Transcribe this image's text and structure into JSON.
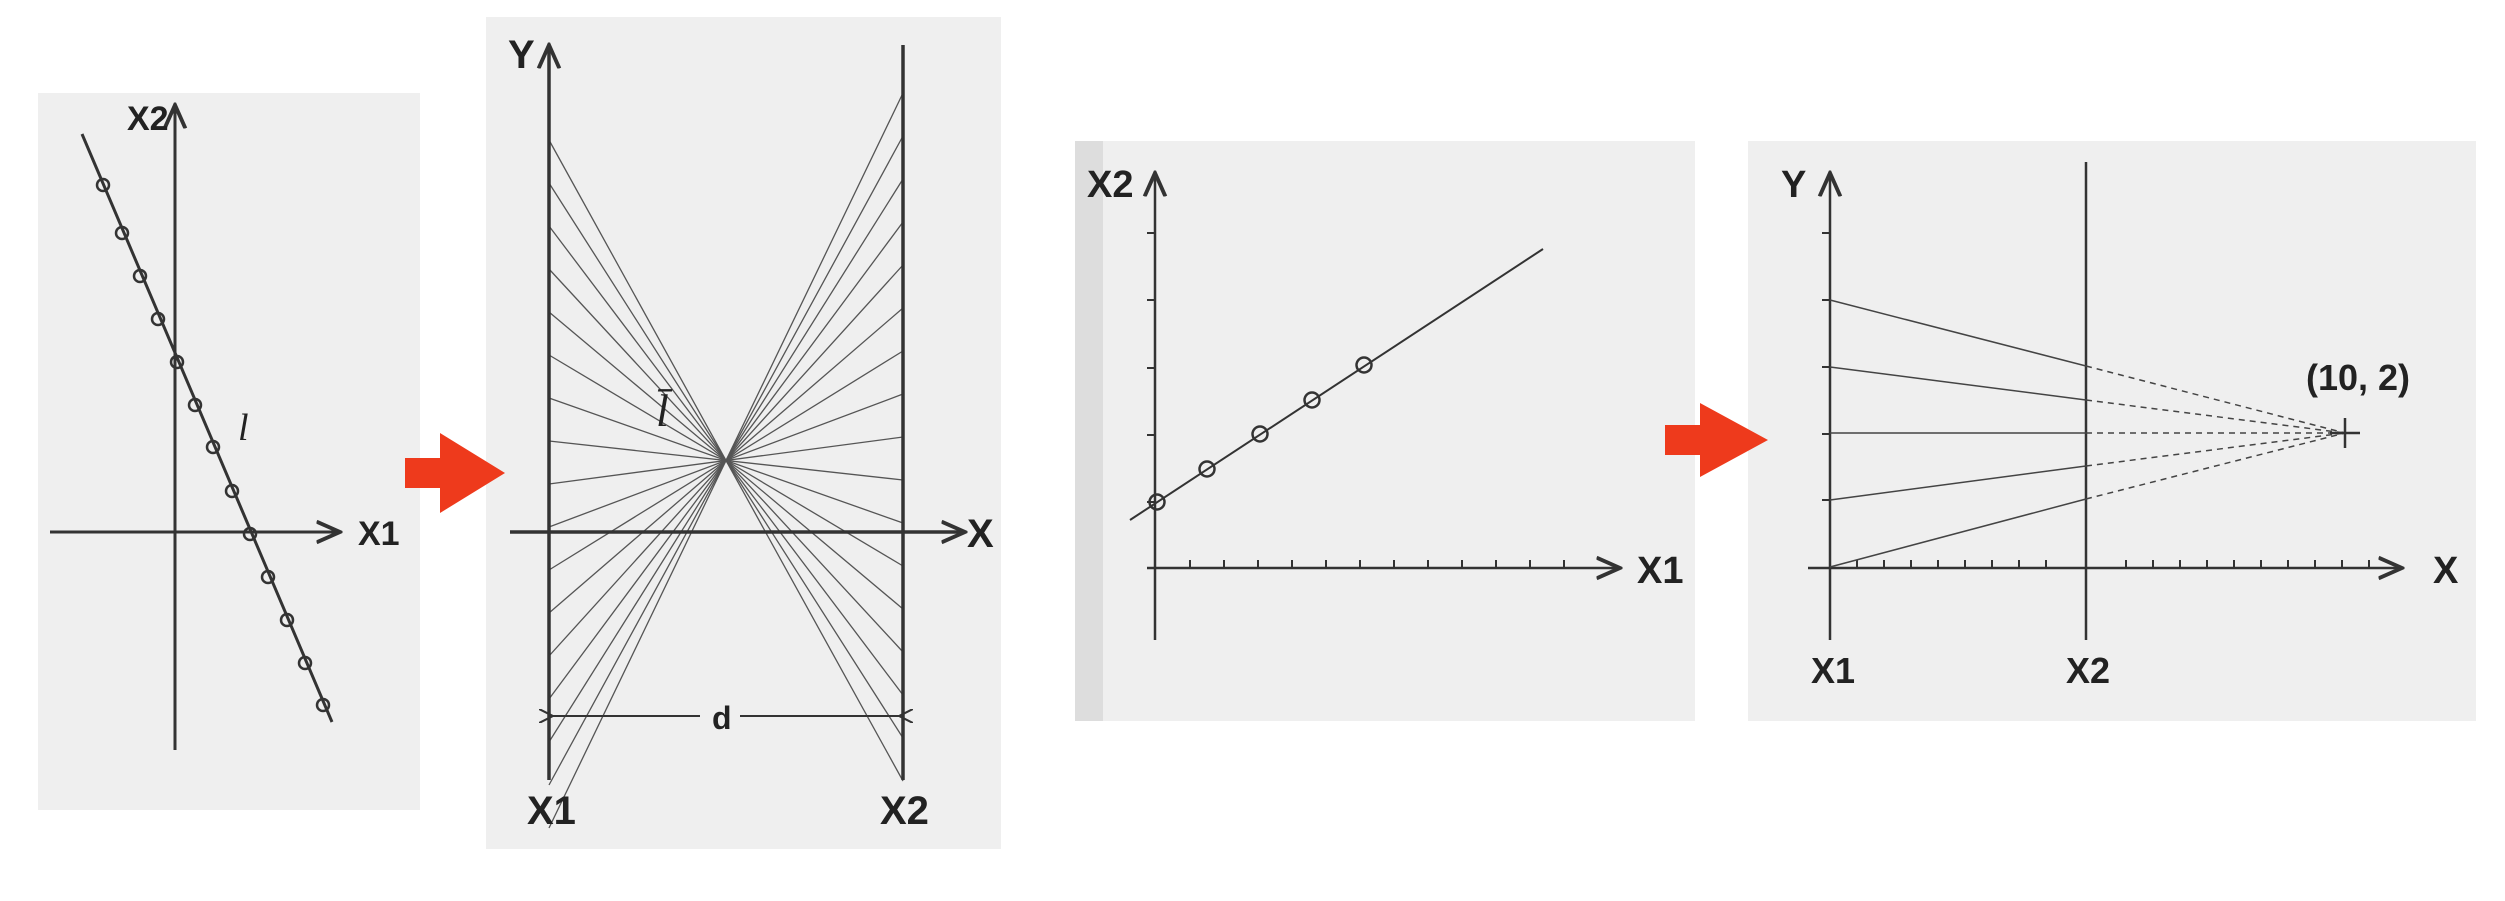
{
  "diagram": {
    "panel1": {
      "x_axis": "X1",
      "y_axis": "X2",
      "line_label": "l"
    },
    "panel2": {
      "y_axis": "Y",
      "x_axis": "X",
      "point_label": "l̄",
      "left_axis": "X1",
      "right_axis": "X2",
      "distance_label": "d"
    },
    "panel3": {
      "x_axis": "X1",
      "y_axis": "X2"
    },
    "panel4": {
      "y_axis": "Y",
      "x_axis": "X",
      "left_axis": "X1",
      "mid_axis": "X2",
      "point_label": "(10, 2)"
    },
    "arrow_color": "#ee3a1c",
    "line_color": "#333333"
  }
}
